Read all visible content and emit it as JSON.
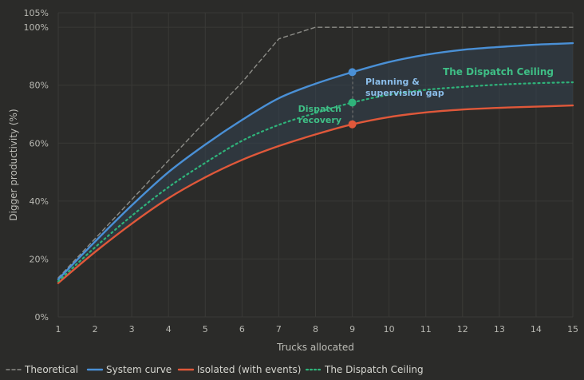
{
  "chart_data": {
    "type": "line",
    "xlabel": "Trucks allocated",
    "ylabel": "Digger productivity (%)",
    "xlim": [
      1,
      15
    ],
    "ylim": [
      0,
      105
    ],
    "x_ticks": [
      1,
      2,
      3,
      4,
      5,
      6,
      7,
      8,
      9,
      10,
      11,
      12,
      13,
      14,
      15
    ],
    "y_ticks": [
      {
        "value": 0,
        "label": "0%"
      },
      {
        "value": 20,
        "label": "20%"
      },
      {
        "value": 40,
        "label": "40%"
      },
      {
        "value": 60,
        "label": "60%"
      },
      {
        "value": 80,
        "label": "80%"
      },
      {
        "value": 100,
        "label": "100%"
      },
      {
        "value": 105,
        "label": "105%"
      }
    ],
    "grid": true,
    "legend_position": "bottom",
    "x": [
      1,
      2,
      3,
      4,
      5,
      6,
      7,
      8,
      9,
      10,
      11,
      12,
      13,
      14,
      15
    ],
    "series": [
      {
        "name": "Theoretical",
        "style": "dashed",
        "color": "#8d8d88",
        "values": [
          13.5,
          27,
          40.5,
          54,
          67.5,
          81,
          96,
          100,
          100,
          100,
          100,
          100,
          100,
          100,
          100
        ]
      },
      {
        "name": "System curve",
        "style": "solid",
        "color": "#4a90d6",
        "values": [
          13,
          26,
          38.5,
          50,
          59.5,
          68,
          75.5,
          80.5,
          84.5,
          88,
          90.5,
          92.2,
          93.2,
          94,
          94.5
        ]
      },
      {
        "name": "Isolated (with events)",
        "style": "solid",
        "color": "#e0583a",
        "values": [
          11.7,
          22.4,
          32.2,
          41,
          48.2,
          54.2,
          59,
          63,
          66.5,
          69,
          70.6,
          71.6,
          72.2,
          72.6,
          73
        ]
      },
      {
        "name": "The Dispatch Ceiling",
        "style": "dotted",
        "color": "#2fb37a",
        "values": [
          12.3,
          24,
          34.9,
          44.8,
          53.2,
          60.8,
          66.3,
          70.4,
          74,
          76.7,
          78.4,
          79.4,
          80.2,
          80.7,
          81
        ]
      }
    ],
    "markers": [
      {
        "x": 9,
        "y": 84.5,
        "color": "#4a90d6"
      },
      {
        "x": 9,
        "y": 74,
        "color": "#2fb37a"
      },
      {
        "x": 9,
        "y": 66.5,
        "color": "#e0583a"
      }
    ],
    "annotations": {
      "planning_line1": "Planning &",
      "planning_line2": "supervision gap",
      "dispatch_line1": "Dispatch",
      "dispatch_line2": "recovery",
      "ceiling": "The Dispatch Ceiling"
    },
    "colors": {
      "background": "#2b2b29",
      "grid": "#3a3a37",
      "shade": "#334150",
      "planning_text": "#8bbde9",
      "dispatch_text": "#3fbf86"
    }
  }
}
